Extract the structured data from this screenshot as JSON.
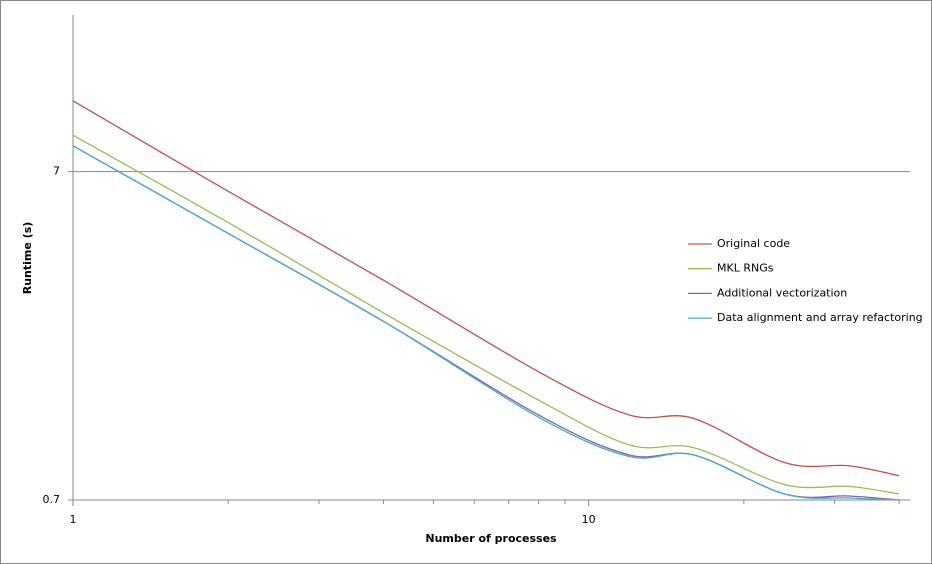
{
  "chart_data": {
    "type": "line",
    "x_label": "Number of processes",
    "y_label": "Runtime (s)",
    "x": [
      1,
      2,
      4,
      8,
      12,
      16,
      24,
      32,
      40
    ],
    "series": [
      {
        "name": "Original code",
        "color": "#c0504d",
        "values": [
          11.5,
          6.1,
          3.27,
          1.72,
          1.27,
          1.24,
          0.91,
          0.89,
          0.83
        ]
      },
      {
        "name": "MKL RNGs",
        "color": "#9bbb59",
        "values": [
          9.04,
          4.9,
          2.6,
          1.41,
          1.03,
          1.01,
          0.78,
          0.77,
          0.73
        ]
      },
      {
        "name": "Additional vectorization",
        "color": "#8064a2",
        "values": [
          8.39,
          4.54,
          2.45,
          1.27,
          0.96,
          0.96,
          0.73,
          0.72,
          0.7
        ]
      },
      {
        "name": "Data alignment and array refactoring",
        "color": "#4bacc6",
        "values": [
          8.39,
          4.54,
          2.45,
          1.25,
          0.95,
          0.96,
          0.73,
          0.71,
          0.7
        ]
      }
    ],
    "xlog": true,
    "ylog": true,
    "xlim": [
      1,
      42
    ],
    "ylim": [
      0.7,
      21
    ],
    "xticks": [
      1,
      10
    ],
    "xminorticks": [
      2,
      3,
      4,
      5,
      6,
      7,
      8,
      9,
      20,
      30,
      40
    ],
    "yticks": [
      0.7,
      7
    ],
    "grid": true,
    "legend": "right"
  }
}
